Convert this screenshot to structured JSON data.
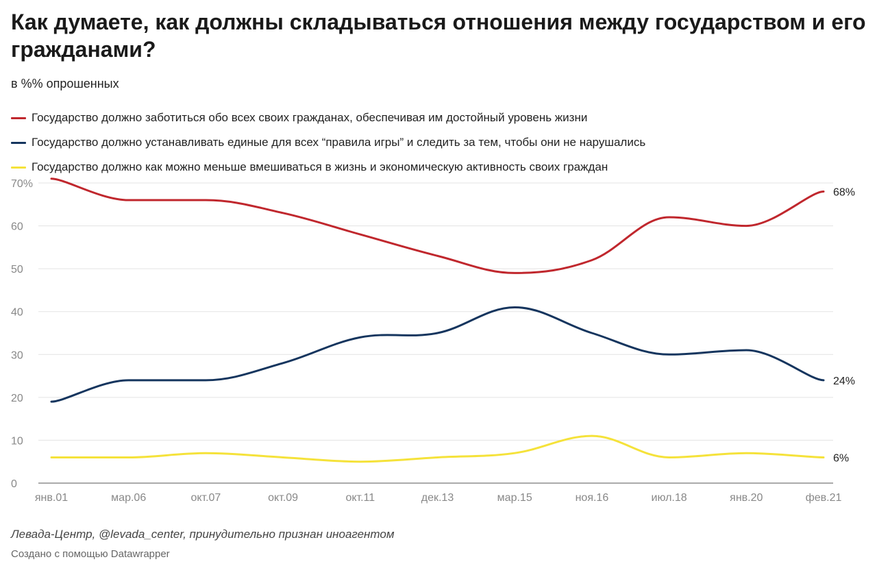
{
  "title": "Как думаете, как должны складываться отношения между государством и его гражданами?",
  "subtitle": "в %% опрошенных",
  "notes": "Левада-Центр, @levada_center, принудительно признан иноагентом",
  "credit": "Создано с помощью Datawrapper",
  "chart_data": {
    "type": "line",
    "categories": [
      "янв.01",
      "мар.06",
      "окт.07",
      "окт.09",
      "окт.11",
      "дек.13",
      "мар.15",
      "ноя.16",
      "июл.18",
      "янв.20",
      "фев.21"
    ],
    "ylim": [
      0,
      70
    ],
    "yticks": [
      "0",
      "10",
      "20",
      "30",
      "40",
      "50",
      "60",
      "70%"
    ],
    "grid": true,
    "legend_position": "top",
    "series": [
      {
        "name": "Государство должно заботиться обо всех своих гражданах, обеспечивая им достойный уровень жизни",
        "color": "#c0272d",
        "values": [
          71,
          66,
          66,
          63,
          58,
          53,
          49,
          52,
          62,
          60,
          68
        ],
        "end_label": "68%"
      },
      {
        "name": "Государство должно устанавливать единые для всех “правила игры” и следить за тем, чтобы они не нарушались",
        "color": "#15355e",
        "values": [
          19,
          24,
          24,
          28,
          34,
          35,
          41,
          35,
          30,
          31,
          24
        ],
        "end_label": "24%"
      },
      {
        "name": "Государство должно как можно меньше вмешиваться в жизнь и экономическую активность своих граждан",
        "color": "#f5e23a",
        "values": [
          6,
          6,
          7,
          6,
          5,
          6,
          7,
          11,
          6,
          7,
          6
        ],
        "end_label": "6%"
      }
    ]
  }
}
